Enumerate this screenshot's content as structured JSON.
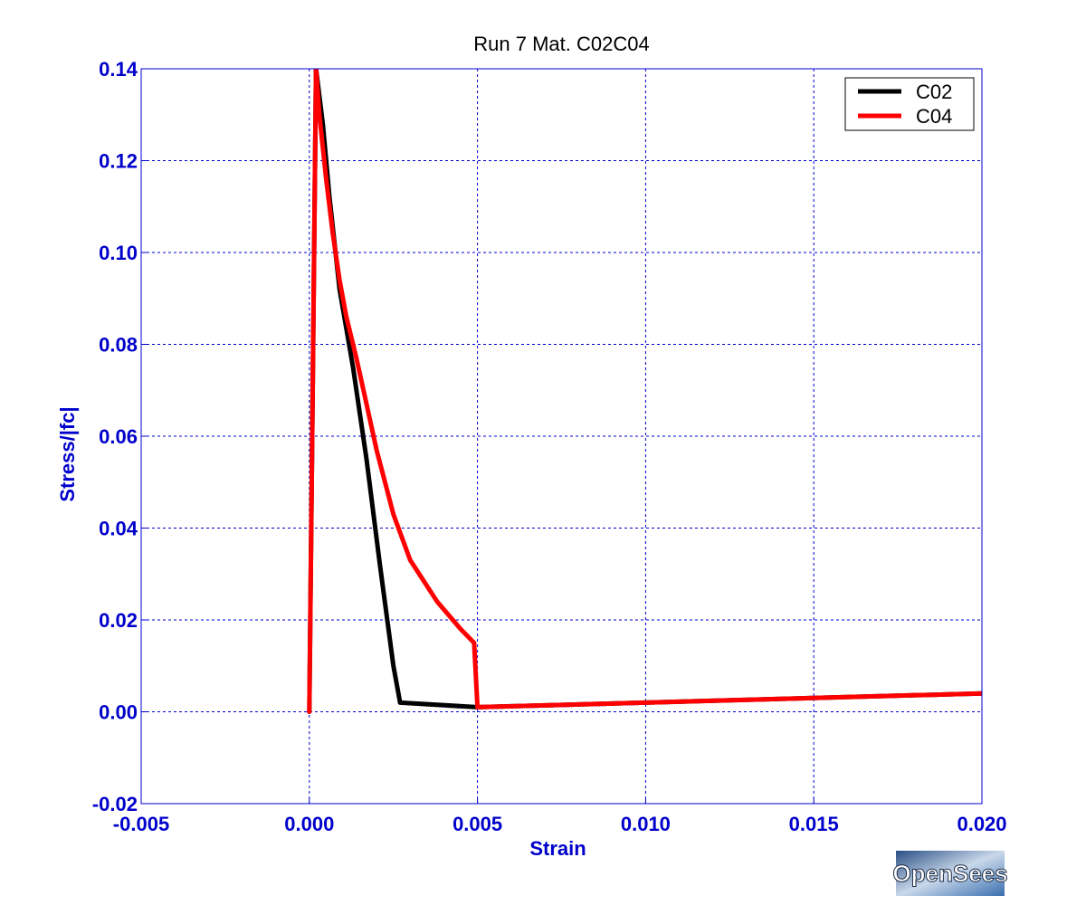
{
  "chart_data": {
    "type": "line",
    "title": "Run 7   Mat. C02C04",
    "xlabel": "Strain",
    "ylabel": "Stress/|fc|",
    "xlim": [
      -0.005,
      0.02
    ],
    "ylim": [
      -0.02,
      0.14
    ],
    "xticks": [
      -0.005,
      0.0,
      0.005,
      0.01,
      0.015,
      0.02
    ],
    "xtick_labels": [
      "-0.005",
      "0.000",
      "0.005",
      "0.010",
      "0.015",
      "0.020"
    ],
    "yticks": [
      -0.02,
      0.0,
      0.02,
      0.04,
      0.06,
      0.08,
      0.1,
      0.12,
      0.14
    ],
    "ytick_labels": [
      "-0.02",
      "0.00",
      "0.02",
      "0.04",
      "0.06",
      "0.08",
      "0.10",
      "0.12",
      "0.14"
    ],
    "grid": true,
    "legend_position": "top-right",
    "series": [
      {
        "name": "C02",
        "color": "#000000",
        "x": [
          0.0,
          0.0002,
          0.0004,
          0.0006,
          0.0009,
          0.0013,
          0.0017,
          0.0021,
          0.0025,
          0.0027,
          0.005,
          0.02
        ],
        "y": [
          0.0,
          0.14,
          0.128,
          0.112,
          0.092,
          0.075,
          0.055,
          0.032,
          0.01,
          0.002,
          0.001,
          0.004
        ]
      },
      {
        "name": "C04",
        "color": "#ff0000",
        "x": [
          0.0,
          0.0002,
          0.0003,
          0.0005,
          0.0007,
          0.0009,
          0.0011,
          0.0014,
          0.0017,
          0.002,
          0.0025,
          0.003,
          0.0038,
          0.0045,
          0.0049,
          0.005,
          0.02
        ],
        "y": [
          0.0,
          0.14,
          0.13,
          0.116,
          0.104,
          0.094,
          0.086,
          0.077,
          0.067,
          0.057,
          0.043,
          0.033,
          0.024,
          0.018,
          0.015,
          0.001,
          0.004
        ]
      }
    ]
  },
  "logo": {
    "text": "OpenSees"
  }
}
